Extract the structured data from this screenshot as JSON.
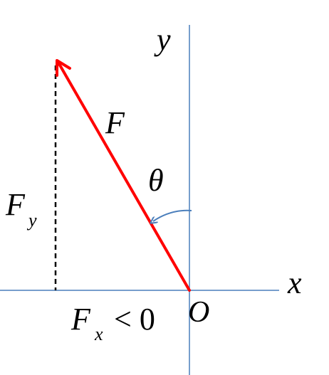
{
  "diagram": {
    "labels": {
      "y_axis": "y",
      "x_axis": "x",
      "origin": "O",
      "force": "F",
      "angle": "θ",
      "fy_main": "F",
      "fy_sub": "y",
      "fx_main": "F",
      "fx_sub": "x",
      "fx_relation": "< 0"
    },
    "colors": {
      "axis": "#4a7ebb",
      "force": "#ff0000",
      "angle_arrow": "#4a7ebb",
      "component": "#000000",
      "text": "#000000"
    }
  }
}
